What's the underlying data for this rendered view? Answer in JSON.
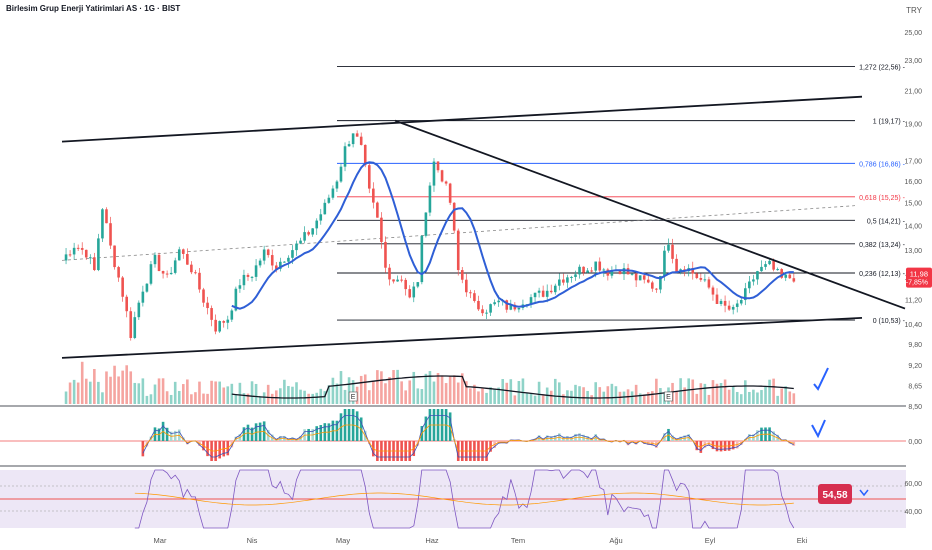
{
  "header": {
    "title": "Birlesim Grup Enerji Yatirimlari AS · 1G · BIST",
    "currency": "TRY"
  },
  "price_axis": {
    "ticks": [
      "25,00",
      "23,00",
      "21,00",
      "19,00",
      "17,00",
      "16,00",
      "15,00",
      "14,00",
      "13,00",
      "12,00",
      "11,20",
      "10,40",
      "9,80",
      "9,20",
      "8,65",
      "8,50"
    ]
  },
  "price_tag": {
    "price": "11,98",
    "change": "-7,85%"
  },
  "macd_axis": {
    "zero": "0,00"
  },
  "rsi_axis": {
    "ticks": [
      "60,00",
      "40,00"
    ],
    "value": "54,58"
  },
  "earnings_marker": "E",
  "time_axis": {
    "labels": [
      "Mar",
      "Nis",
      "May",
      "Haz",
      "Tem",
      "Ağu",
      "Eyl",
      "Eki"
    ]
  },
  "fibonacci": [
    {
      "label": "1,272 (22,56)",
      "color": "#131722"
    },
    {
      "label": "1 (19,17)",
      "color": "#131722"
    },
    {
      "label": "0,786 (16,86)",
      "color": "#2962ff"
    },
    {
      "label": "0,618 (15,25)",
      "color": "#f23645"
    },
    {
      "label": "0,5 (14,21)",
      "color": "#131722"
    },
    {
      "label": "0,382 (13,24)",
      "color": "#131722"
    },
    {
      "label": "0,236 (12,13)",
      "color": "#131722"
    },
    {
      "label": "0 (10,53)",
      "color": "#131722"
    }
  ],
  "colors": {
    "up": "#26a69a",
    "down": "#ef5350",
    "ma": "#2f5fd6",
    "rsi_line": "#7e57c2",
    "rsi_bg": "#ede7f6",
    "signal": "#ff9800",
    "tag": "#f23645"
  },
  "chart_data": {
    "type": "candlestick",
    "title": "Birlesim Grup Enerji Yatirimlari AS · 1G · BIST",
    "x_months": [
      "Mar",
      "Nis",
      "May",
      "Haz",
      "Tem",
      "Ağu",
      "Eyl",
      "Eki"
    ],
    "close_path": [
      [
        0,
        12.6
      ],
      [
        3,
        13.2
      ],
      [
        6,
        12.9
      ],
      [
        8,
        12.2
      ],
      [
        10,
        14.8
      ],
      [
        12,
        13.1
      ],
      [
        15,
        11.4
      ],
      [
        17,
        10.1
      ],
      [
        20,
        11.6
      ],
      [
        23,
        12.6
      ],
      [
        26,
        11.9
      ],
      [
        29,
        13.0
      ],
      [
        32,
        12.3
      ],
      [
        35,
        11.2
      ],
      [
        38,
        10.3
      ],
      [
        41,
        10.6
      ],
      [
        44,
        11.8
      ],
      [
        47,
        12.1
      ],
      [
        50,
        12.9
      ],
      [
        53,
        12.4
      ],
      [
        56,
        12.9
      ],
      [
        59,
        13.3
      ],
      [
        62,
        13.9
      ],
      [
        65,
        14.8
      ],
      [
        68,
        16.1
      ],
      [
        70,
        17.6
      ],
      [
        72,
        18.6
      ],
      [
        74,
        17.6
      ],
      [
        76,
        15.4
      ],
      [
        78,
        14.2
      ],
      [
        80,
        12.3
      ],
      [
        82,
        11.9
      ],
      [
        84,
        12.0
      ],
      [
        86,
        11.2
      ],
      [
        88,
        11.9
      ],
      [
        90,
        14.8
      ],
      [
        92,
        16.9
      ],
      [
        94,
        16.2
      ],
      [
        96,
        15.0
      ],
      [
        98,
        12.2
      ],
      [
        100,
        11.6
      ],
      [
        102,
        11.0
      ],
      [
        105,
        10.9
      ],
      [
        108,
        11.1
      ],
      [
        111,
        10.9
      ],
      [
        114,
        11.2
      ],
      [
        117,
        11.3
      ],
      [
        120,
        11.5
      ],
      [
        123,
        11.9
      ],
      [
        126,
        12.1
      ],
      [
        129,
        12.3
      ],
      [
        132,
        12.5
      ],
      [
        135,
        12.2
      ],
      [
        138,
        12.3
      ],
      [
        141,
        12.0
      ],
      [
        144,
        11.8
      ],
      [
        147,
        11.6
      ],
      [
        150,
        13.4
      ],
      [
        152,
        12.3
      ],
      [
        154,
        12.4
      ],
      [
        157,
        12.0
      ],
      [
        160,
        11.6
      ],
      [
        163,
        11.0
      ],
      [
        166,
        10.8
      ],
      [
        169,
        11.4
      ],
      [
        172,
        12.2
      ],
      [
        175,
        12.4
      ],
      [
        178,
        11.9
      ],
      [
        181,
        12.0
      ]
    ],
    "moving_average": {
      "values_start": 12.0,
      "peak_1": 13.6,
      "peak_2": 13.6,
      "end": 11.9
    },
    "last_close": 11.98,
    "change_pct": -7.85,
    "fib_levels": [
      22.56,
      19.17,
      16.86,
      15.25,
      14.21,
      13.24,
      12.13,
      10.53
    ],
    "trendlines": [
      "rising upper channel",
      "rising lower channel",
      "descending resistance from May high"
    ],
    "rsi_last": 54.58,
    "y_scale": "log"
  }
}
